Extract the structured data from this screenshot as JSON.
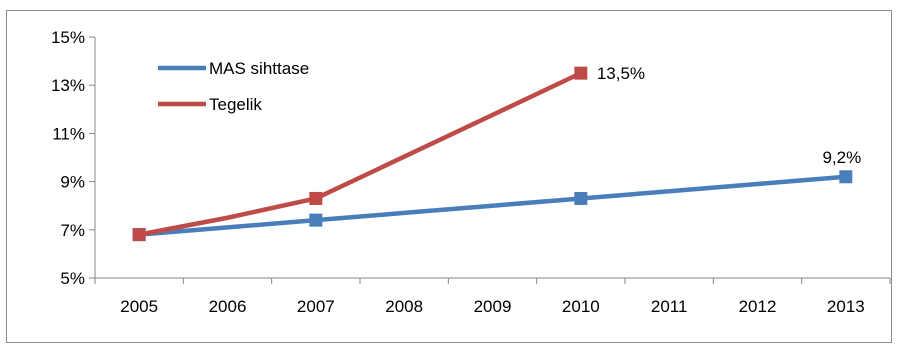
{
  "chart_data": {
    "type": "line",
    "x": [
      2005,
      2006,
      2007,
      2008,
      2009,
      2010,
      2011,
      2012,
      2013
    ],
    "x_tick_labels": [
      "2005",
      "2006",
      "2007",
      "2008",
      "2009",
      "2010",
      "2011",
      "2012",
      "2013"
    ],
    "ylim": [
      5,
      15
    ],
    "y_ticks": [
      5,
      7,
      9,
      11,
      13,
      15
    ],
    "y_tick_labels": [
      "5%",
      "7%",
      "9%",
      "11%",
      "13%",
      "15%"
    ],
    "grid": false,
    "legend_position": "top-left",
    "series": [
      {
        "name": "MAS sihttase",
        "color": "#4a7ebb",
        "marker": "square",
        "x": [
          2005,
          2006,
          2007,
          2008,
          2009,
          2010,
          2011,
          2012,
          2013
        ],
        "values": [
          6.8,
          7.1,
          7.4,
          7.7,
          8.0,
          8.3,
          8.6,
          8.9,
          9.2
        ],
        "markers_at": [
          2005,
          2007,
          2010,
          2013
        ]
      },
      {
        "name": "Tegelik",
        "color": "#be4b48",
        "marker": "square",
        "x": [
          2005,
          2006,
          2007,
          2010
        ],
        "values": [
          6.8,
          7.5,
          8.3,
          13.5
        ],
        "markers_at": [
          2005,
          2007,
          2010
        ]
      }
    ],
    "data_labels": [
      {
        "series": "Tegelik",
        "x": 2010,
        "text": "13,5%"
      },
      {
        "series": "MAS sihttase",
        "x": 2013,
        "text": "9,2%"
      }
    ]
  }
}
